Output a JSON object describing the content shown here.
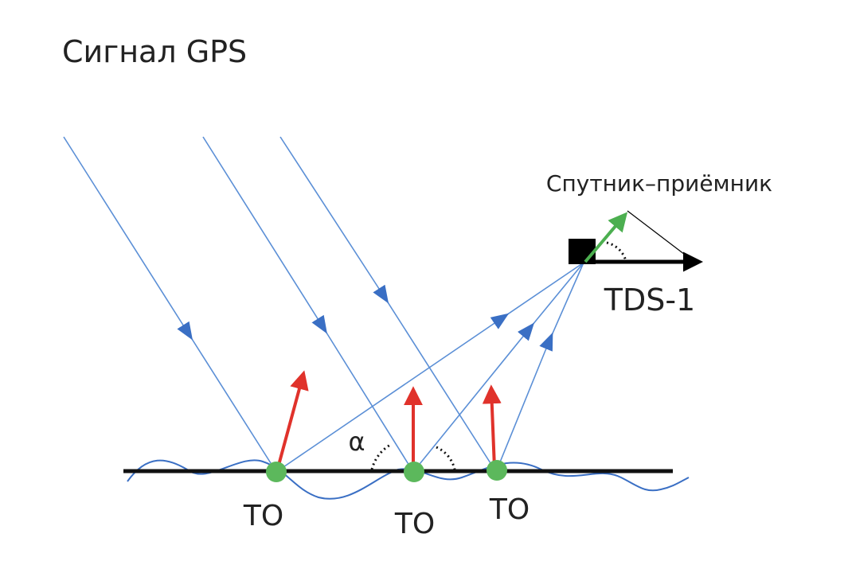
{
  "title": "Сигнал GPS",
  "receiver_label": "Спутник–приёмник",
  "satellite_label": "TDS-1",
  "angle_label": "α",
  "points": [
    {
      "label": "TO"
    },
    {
      "label": "TO"
    },
    {
      "label": "TO"
    }
  ]
}
